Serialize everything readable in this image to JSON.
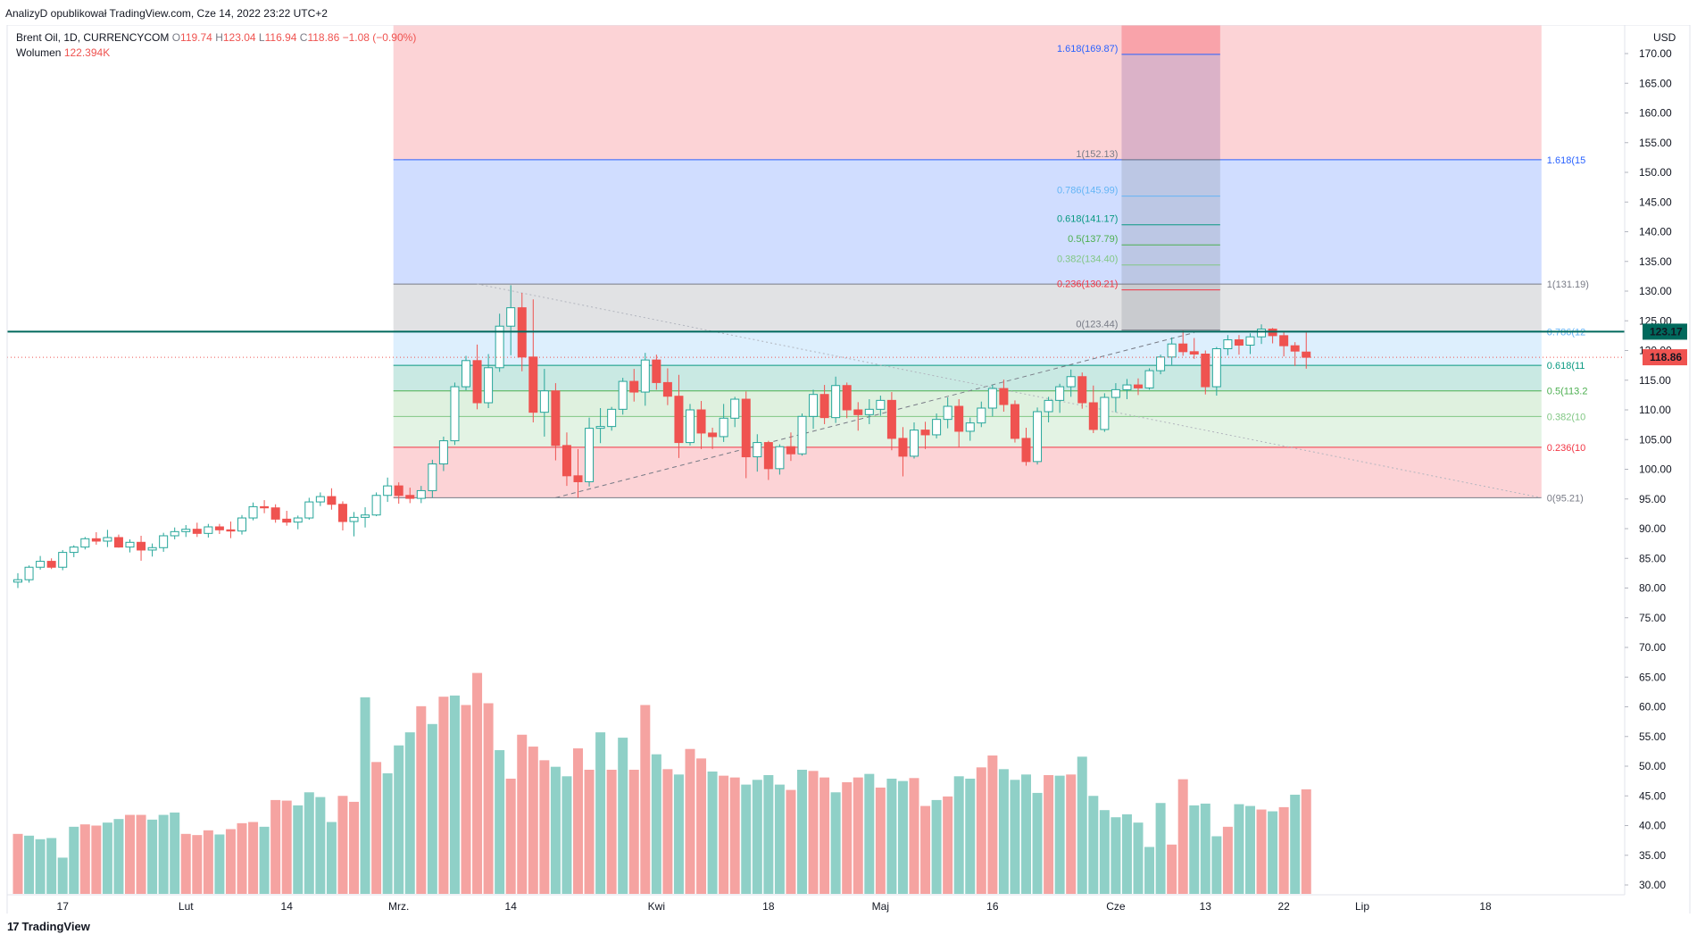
{
  "header": {
    "publish_text": "AnalizyD opublikował TradingView.com, Cze 14, 2022 23:22 UTC+2"
  },
  "legend": {
    "symbol": "Brent Oil, 1D, CURRENCYCOM",
    "o_label": "O",
    "o_value": "119.74",
    "h_label": "H",
    "h_value": "123.04",
    "l_label": "L",
    "l_value": "116.94",
    "c_label": "C",
    "c_value": "118.86",
    "change": "−1.08 (−0.90%)",
    "volume_label": "Wolumen",
    "volume_value": "122.394K"
  },
  "colors": {
    "up": "#26a69a",
    "down": "#ef5350",
    "vol_up": "#8fd0c7",
    "vol_down": "#f5a3a1",
    "teal_line": "#00695c",
    "fib_blue": "#2962ff"
  },
  "footer": {
    "brand": "TradingView",
    "logo": "17"
  },
  "chart_data": {
    "type": "candlestick",
    "currency_label": "USD",
    "price_range": [
      30,
      172
    ],
    "price_ticks": [
      "170.00",
      "165.00",
      "160.00",
      "155.00",
      "150.00",
      "145.00",
      "140.00",
      "135.00",
      "130.00",
      "125.00",
      "120.00",
      "115.00",
      "110.00",
      "105.00",
      "100.00",
      "95.00",
      "90.00",
      "85.00",
      "80.00",
      "75.00",
      "70.00",
      "65.00",
      "60.00",
      "55.00",
      "50.00",
      "45.00",
      "40.00",
      "35.00",
      "30.00"
    ],
    "x_labels": [
      {
        "i": 4,
        "label": "17"
      },
      {
        "i": 15,
        "label": "Lut"
      },
      {
        "i": 24,
        "label": "14"
      },
      {
        "i": 34,
        "label": "Mrz."
      },
      {
        "i": 44,
        "label": "14"
      },
      {
        "i": 57,
        "label": "Kwi"
      },
      {
        "i": 67,
        "label": "18"
      },
      {
        "i": 77,
        "label": "Maj"
      },
      {
        "i": 87,
        "label": "16"
      },
      {
        "i": 98,
        "label": "Cze"
      },
      {
        "i": 106,
        "label": "13"
      },
      {
        "i": 113,
        "label": "22"
      },
      {
        "i": 120,
        "label": "Lip"
      },
      {
        "i": 131,
        "label": "18"
      }
    ],
    "current_price": {
      "value": 118.86,
      "label": "118.86"
    },
    "level_price": {
      "value": 123.17,
      "label": "123.17"
    },
    "candles": [
      [
        81.0,
        82.5,
        80.0,
        81.4
      ],
      [
        81.4,
        83.8,
        80.9,
        83.5
      ],
      [
        83.5,
        85.4,
        83.1,
        84.5
      ],
      [
        84.5,
        85.0,
        83.2,
        83.5
      ],
      [
        83.5,
        86.4,
        83.0,
        86.0
      ],
      [
        86.0,
        87.2,
        85.2,
        86.9
      ],
      [
        86.9,
        88.6,
        86.5,
        88.3
      ],
      [
        88.3,
        89.4,
        87.3,
        87.9
      ],
      [
        87.9,
        89.8,
        86.9,
        88.5
      ],
      [
        88.5,
        89.0,
        86.8,
        86.9
      ],
      [
        86.9,
        88.2,
        86.0,
        87.7
      ],
      [
        87.7,
        88.8,
        84.6,
        86.4
      ],
      [
        86.4,
        87.5,
        85.3,
        86.8
      ],
      [
        86.8,
        89.3,
        86.1,
        88.8
      ],
      [
        88.8,
        90.2,
        88.2,
        89.5
      ],
      [
        89.5,
        90.6,
        88.6,
        89.9
      ],
      [
        89.9,
        91.0,
        88.6,
        89.2
      ],
      [
        89.2,
        90.8,
        88.5,
        90.3
      ],
      [
        90.3,
        90.8,
        89.1,
        89.8
      ],
      [
        89.8,
        91.2,
        88.4,
        89.6
      ],
      [
        89.6,
        92.3,
        89.0,
        91.8
      ],
      [
        91.8,
        94.4,
        91.4,
        93.7
      ],
      [
        93.7,
        94.8,
        92.6,
        93.5
      ],
      [
        93.5,
        94.1,
        91.0,
        91.6
      ],
      [
        91.6,
        93.0,
        90.5,
        91.1
      ],
      [
        91.1,
        92.2,
        89.9,
        91.8
      ],
      [
        91.8,
        95.2,
        91.5,
        94.5
      ],
      [
        94.5,
        96.1,
        93.8,
        95.4
      ],
      [
        95.4,
        96.8,
        93.2,
        94.1
      ],
      [
        94.1,
        94.6,
        89.7,
        91.2
      ],
      [
        91.2,
        92.8,
        88.7,
        91.9
      ],
      [
        91.9,
        93.6,
        90.2,
        92.3
      ],
      [
        92.3,
        96.1,
        92.1,
        95.6
      ],
      [
        95.6,
        98.6,
        94.5,
        97.2
      ],
      [
        97.2,
        97.8,
        94.2,
        95.6
      ],
      [
        95.6,
        96.9,
        94.3,
        95.1
      ],
      [
        95.1,
        97.2,
        94.3,
        96.4
      ],
      [
        96.4,
        101.6,
        95.2,
        100.9
      ],
      [
        100.9,
        105.5,
        99.7,
        104.8
      ],
      [
        104.8,
        114.6,
        104.1,
        113.9
      ],
      [
        113.9,
        119.1,
        113.3,
        118.3
      ],
      [
        118.3,
        121.0,
        110.1,
        111.2
      ],
      [
        111.2,
        119.4,
        110.3,
        117.1
      ],
      [
        117.1,
        126.2,
        116.4,
        124.1
      ],
      [
        124.1,
        131.0,
        119.2,
        127.2
      ],
      [
        127.2,
        129.7,
        116.5,
        118.9
      ],
      [
        118.9,
        128.6,
        107.9,
        109.6
      ],
      [
        109.6,
        116.9,
        105.5,
        113.2
      ],
      [
        113.2,
        114.5,
        101.5,
        104.0
      ],
      [
        104.0,
        106.2,
        97.2,
        98.9
      ],
      [
        98.9,
        103.4,
        95.2,
        97.9
      ],
      [
        97.9,
        108.7,
        97.1,
        106.9
      ],
      [
        106.9,
        110.3,
        104.4,
        107.2
      ],
      [
        107.2,
        110.5,
        106.5,
        110.1
      ],
      [
        110.1,
        115.4,
        109.2,
        114.8
      ],
      [
        114.8,
        116.9,
        111.4,
        113.0
      ],
      [
        113.0,
        119.6,
        110.7,
        118.4
      ],
      [
        118.4,
        119.3,
        113.4,
        114.6
      ],
      [
        114.6,
        117.0,
        110.8,
        112.3
      ],
      [
        112.3,
        115.9,
        101.9,
        104.5
      ],
      [
        104.5,
        111.0,
        104.0,
        110.0
      ],
      [
        110.0,
        111.5,
        103.4,
        106.1
      ],
      [
        106.1,
        107.0,
        103.4,
        105.5
      ],
      [
        105.5,
        111.0,
        104.6,
        108.6
      ],
      [
        108.6,
        112.2,
        107.1,
        111.8
      ],
      [
        111.8,
        113.1,
        98.5,
        102.1
      ],
      [
        102.1,
        105.9,
        99.6,
        104.5
      ],
      [
        104.5,
        104.8,
        98.2,
        100.1
      ],
      [
        100.1,
        104.2,
        99.1,
        103.8
      ],
      [
        103.8,
        106.2,
        101.4,
        102.6
      ],
      [
        102.6,
        109.4,
        102.3,
        108.9
      ],
      [
        108.9,
        113.4,
        106.8,
        112.6
      ],
      [
        112.6,
        114.2,
        107.6,
        108.7
      ],
      [
        108.7,
        115.6,
        107.8,
        114.1
      ],
      [
        114.1,
        114.6,
        108.6,
        110.0
      ],
      [
        110.0,
        111.3,
        106.5,
        109.2
      ],
      [
        109.2,
        111.8,
        107.6,
        110.1
      ],
      [
        110.1,
        112.4,
        109.0,
        111.6
      ],
      [
        111.6,
        113.0,
        103.2,
        105.2
      ],
      [
        105.2,
        107.1,
        98.8,
        102.2
      ],
      [
        102.2,
        107.9,
        101.8,
        106.6
      ],
      [
        106.6,
        108.0,
        103.4,
        105.8
      ],
      [
        105.8,
        109.4,
        105.2,
        108.4
      ],
      [
        108.4,
        112.1,
        106.9,
        110.6
      ],
      [
        110.6,
        111.8,
        103.7,
        106.4
      ],
      [
        106.4,
        108.7,
        104.8,
        107.8
      ],
      [
        107.8,
        111.4,
        107.1,
        110.3
      ],
      [
        110.3,
        114.2,
        108.9,
        113.6
      ],
      [
        113.6,
        115.1,
        109.7,
        110.9
      ],
      [
        110.9,
        111.6,
        104.5,
        105.2
      ],
      [
        105.2,
        107.0,
        100.6,
        101.3
      ],
      [
        101.3,
        110.4,
        100.8,
        109.7
      ],
      [
        109.7,
        112.2,
        107.9,
        111.6
      ],
      [
        111.6,
        114.4,
        109.5,
        113.9
      ],
      [
        113.9,
        116.8,
        112.2,
        115.6
      ],
      [
        115.6,
        116.3,
        110.2,
        111.2
      ],
      [
        111.2,
        114.1,
        106.1,
        106.7
      ],
      [
        106.7,
        112.8,
        106.3,
        112.1
      ],
      [
        112.1,
        114.5,
        109.6,
        113.4
      ],
      [
        113.4,
        115.2,
        111.8,
        114.2
      ],
      [
        114.2,
        115.3,
        112.5,
        113.7
      ],
      [
        113.7,
        117.0,
        113.4,
        116.6
      ],
      [
        116.6,
        119.3,
        116.0,
        118.9
      ],
      [
        118.9,
        122.2,
        117.6,
        121.1
      ],
      [
        121.1,
        123.4,
        119.1,
        119.8
      ],
      [
        119.8,
        122.1,
        118.6,
        119.4
      ],
      [
        119.4,
        120.0,
        112.6,
        113.9
      ],
      [
        113.9,
        120.6,
        112.4,
        120.3
      ],
      [
        120.3,
        122.6,
        119.2,
        121.8
      ],
      [
        121.8,
        122.6,
        119.3,
        120.9
      ],
      [
        120.9,
        122.9,
        119.4,
        122.3
      ],
      [
        122.3,
        124.4,
        121.1,
        123.6
      ],
      [
        123.6,
        123.8,
        121.2,
        122.5
      ],
      [
        122.5,
        123.1,
        119.0,
        120.8
      ],
      [
        120.8,
        121.4,
        117.4,
        119.9
      ],
      [
        119.74,
        123.04,
        116.94,
        118.86
      ]
    ],
    "volumes": [
      [
        38.6,
        0
      ],
      [
        38.3,
        1
      ],
      [
        37.7,
        1
      ],
      [
        37.9,
        1
      ],
      [
        34.6,
        1
      ],
      [
        39.8,
        1
      ],
      [
        40.2,
        0
      ],
      [
        40.0,
        0
      ],
      [
        40.5,
        1
      ],
      [
        41.1,
        1
      ],
      [
        41.8,
        0
      ],
      [
        41.8,
        0
      ],
      [
        41.0,
        1
      ],
      [
        41.8,
        1
      ],
      [
        42.2,
        1
      ],
      [
        38.6,
        0
      ],
      [
        38.4,
        0
      ],
      [
        39.2,
        0
      ],
      [
        38.5,
        1
      ],
      [
        39.4,
        0
      ],
      [
        40.4,
        0
      ],
      [
        40.6,
        0
      ],
      [
        39.8,
        1
      ],
      [
        44.3,
        0
      ],
      [
        44.2,
        0
      ],
      [
        43.4,
        1
      ],
      [
        45.6,
        1
      ],
      [
        44.8,
        1
      ],
      [
        40.6,
        1
      ],
      [
        45.0,
        0
      ],
      [
        44.0,
        0
      ],
      [
        61.6,
        1
      ],
      [
        50.7,
        0
      ],
      [
        48.8,
        1
      ],
      [
        53.5,
        1
      ],
      [
        55.7,
        1
      ],
      [
        60.1,
        0
      ],
      [
        57.1,
        1
      ],
      [
        61.7,
        0
      ],
      [
        61.9,
        1
      ],
      [
        60.3,
        0
      ],
      [
        65.7,
        0
      ],
      [
        60.6,
        0
      ],
      [
        52.7,
        1
      ],
      [
        47.9,
        0
      ],
      [
        55.3,
        0
      ],
      [
        53.3,
        0
      ],
      [
        51.0,
        0
      ],
      [
        49.9,
        1
      ],
      [
        48.3,
        1
      ],
      [
        53.0,
        0
      ],
      [
        49.4,
        0
      ],
      [
        55.7,
        1
      ],
      [
        49.4,
        0
      ],
      [
        54.8,
        1
      ],
      [
        49.4,
        0
      ],
      [
        60.3,
        0
      ],
      [
        52.0,
        1
      ],
      [
        49.5,
        0
      ],
      [
        48.6,
        1
      ],
      [
        52.9,
        0
      ],
      [
        51.3,
        0
      ],
      [
        49.1,
        1
      ],
      [
        48.4,
        0
      ],
      [
        48.1,
        0
      ],
      [
        46.9,
        1
      ],
      [
        47.7,
        1
      ],
      [
        48.5,
        1
      ],
      [
        46.9,
        1
      ],
      [
        46.0,
        0
      ],
      [
        49.4,
        1
      ],
      [
        49.2,
        0
      ],
      [
        48.1,
        0
      ],
      [
        45.6,
        1
      ],
      [
        47.3,
        0
      ],
      [
        48.1,
        0
      ],
      [
        48.7,
        1
      ],
      [
        46.4,
        0
      ],
      [
        47.9,
        1
      ],
      [
        47.5,
        1
      ],
      [
        48.0,
        0
      ],
      [
        43.3,
        0
      ],
      [
        44.3,
        1
      ],
      [
        44.9,
        0
      ],
      [
        48.3,
        1
      ],
      [
        47.9,
        1
      ],
      [
        49.8,
        0
      ],
      [
        51.8,
        0
      ],
      [
        49.5,
        1
      ],
      [
        47.7,
        1
      ],
      [
        48.6,
        1
      ],
      [
        45.5,
        1
      ],
      [
        48.5,
        0
      ],
      [
        48.4,
        1
      ],
      [
        48.6,
        0
      ],
      [
        51.6,
        1
      ],
      [
        45.0,
        1
      ],
      [
        42.6,
        1
      ],
      [
        41.4,
        1
      ],
      [
        41.9,
        1
      ],
      [
        40.5,
        1
      ],
      [
        36.4,
        1
      ],
      [
        43.8,
        1
      ],
      [
        36.8,
        0
      ],
      [
        47.8,
        0
      ],
      [
        43.4,
        1
      ],
      [
        43.7,
        1
      ],
      [
        38.2,
        1
      ],
      [
        39.8,
        0
      ],
      [
        43.6,
        1
      ],
      [
        43.3,
        1
      ],
      [
        42.7,
        0
      ],
      [
        42.4,
        1
      ],
      [
        43.1,
        0
      ],
      [
        45.2,
        1
      ],
      [
        46.1,
        0
      ]
    ],
    "fib_left": {
      "i_start": 34,
      "i_end": 136,
      "levels": [
        {
          "ratio": 1.618,
          "value": 152.13,
          "label": "1.618(15",
          "color": "#2962ff"
        },
        {
          "ratio": 1,
          "value": 131.19,
          "label": "1(131.19)",
          "color": "#787b86"
        },
        {
          "ratio": 0.786,
          "value": 123.17,
          "label": "0.786(12",
          "color": "#64b5f6"
        },
        {
          "ratio": 0.618,
          "value": 117.5,
          "label": "0.618(11",
          "color": "#089981"
        },
        {
          "ratio": 0.5,
          "value": 113.2,
          "label": "0.5(113.2",
          "color": "#4caf50"
        },
        {
          "ratio": 0.382,
          "value": 108.9,
          "label": "0.382(10",
          "color": "#81c784"
        },
        {
          "ratio": 0.236,
          "value": 103.7,
          "label": "0.236(10",
          "color": "#f23645"
        },
        {
          "ratio": 0,
          "value": 95.21,
          "label": "0(95.21)",
          "color": "#787b86"
        }
      ]
    },
    "fib_right": {
      "i_start": 99,
      "i_end": 107,
      "levels": [
        {
          "ratio": 1.618,
          "value": 169.87,
          "label": "1.618(169.87)",
          "color": "#2962ff"
        },
        {
          "ratio": 1,
          "value": 152.13,
          "label": "1(152.13)",
          "color": "#787b86"
        },
        {
          "ratio": 0.786,
          "value": 145.99,
          "label": "0.786(145.99)",
          "color": "#64b5f6"
        },
        {
          "ratio": 0.618,
          "value": 141.17,
          "label": "0.618(141.17)",
          "color": "#089981"
        },
        {
          "ratio": 0.5,
          "value": 137.79,
          "label": "0.5(137.79)",
          "color": "#4caf50"
        },
        {
          "ratio": 0.382,
          "value": 134.4,
          "label": "0.382(134.40)",
          "color": "#81c784"
        },
        {
          "ratio": 0.236,
          "value": 130.21,
          "label": "0.236(130.21)",
          "color": "#f23645"
        },
        {
          "ratio": 0,
          "value": 123.44,
          "label": "0(123.44)",
          "color": "#787b86"
        }
      ]
    },
    "trend_lines": [
      {
        "from": {
          "i": 48,
          "v": 95.2
        },
        "to": {
          "i": 105,
          "v": 123.0
        },
        "style": "dashed"
      },
      {
        "from": {
          "i": 41,
          "v": 131.2
        },
        "to": {
          "i": 136,
          "v": 95.2
        },
        "style": "dotted"
      }
    ]
  }
}
